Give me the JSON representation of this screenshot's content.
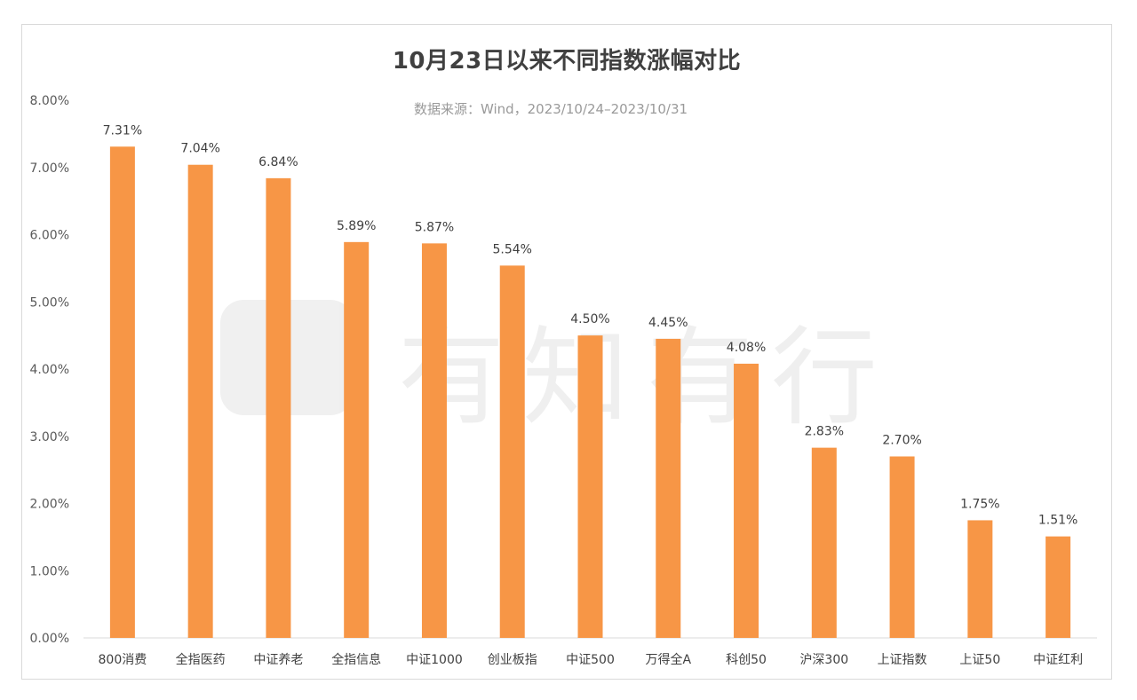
{
  "chart_data": {
    "type": "bar",
    "title": "10月23日以来不同指数涨幅对比",
    "subtitle": "数据来源：Wind，2023/10/24–2023/10/31",
    "categories": [
      "800消费",
      "全指医药",
      "中证养老",
      "全指信息",
      "中证1000",
      "创业板指",
      "中证500",
      "万得全A",
      "科创50",
      "沪深300",
      "上证指数",
      "上证50",
      "中证红利"
    ],
    "values": [
      7.31,
      7.04,
      6.84,
      5.89,
      5.87,
      5.54,
      4.5,
      4.45,
      4.08,
      2.83,
      2.7,
      1.75,
      1.51
    ],
    "data_labels": [
      "7.31%",
      "7.04%",
      "6.84%",
      "5.89%",
      "5.87%",
      "5.54%",
      "4.50%",
      "4.45%",
      "4.08%",
      "2.83%",
      "2.70%",
      "1.75%",
      "1.51%"
    ],
    "y_ticks": [
      "0.00%",
      "1.00%",
      "2.00%",
      "3.00%",
      "4.00%",
      "5.00%",
      "6.00%",
      "7.00%",
      "8.00%"
    ],
    "ylim": [
      0,
      8
    ],
    "grid": false,
    "legend": "none",
    "bar_color": "#F79646"
  },
  "watermark": {
    "text": "有知有行"
  }
}
